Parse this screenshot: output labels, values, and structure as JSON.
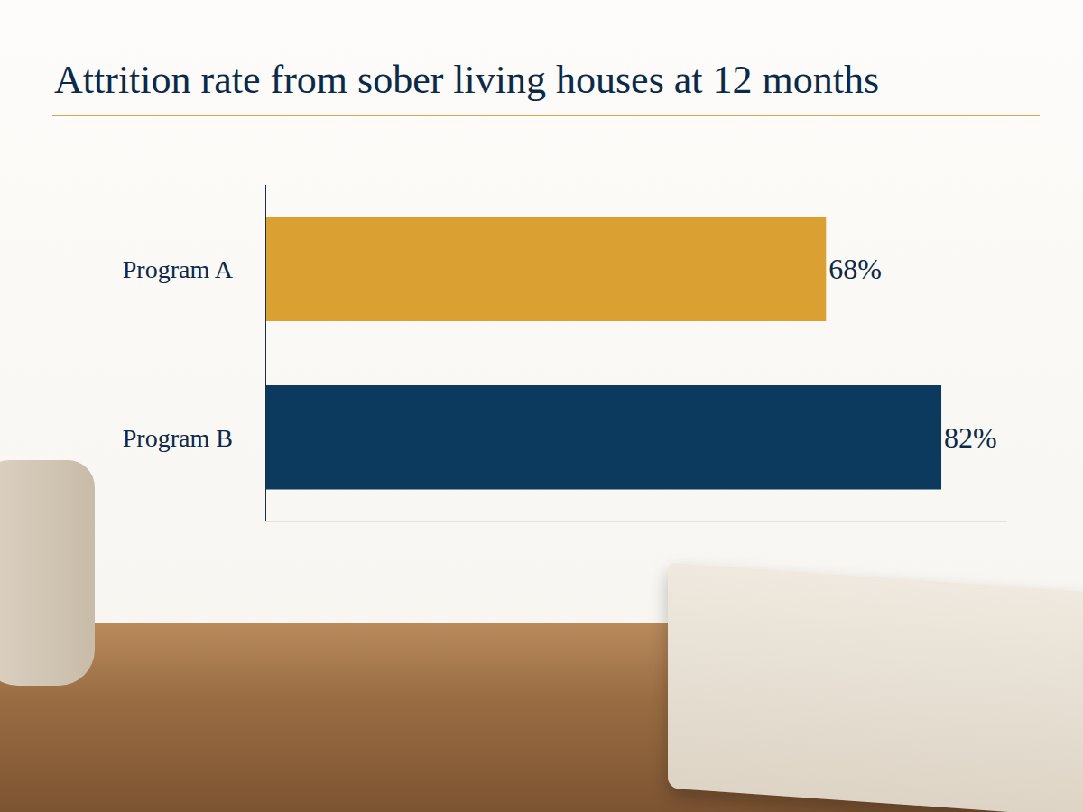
{
  "chart_data": {
    "type": "bar",
    "orientation": "horizontal",
    "title": "Attrition rate from sober living houses at 12 months",
    "categories": [
      "Program A",
      "Program B"
    ],
    "values": [
      68,
      82
    ],
    "value_labels": [
      "68%",
      "82%"
    ],
    "colors": [
      "#dba032",
      "#0b3a5e"
    ],
    "data_labels": true,
    "xlim": [
      0,
      90
    ],
    "grid": false,
    "tick_labels": "y"
  }
}
